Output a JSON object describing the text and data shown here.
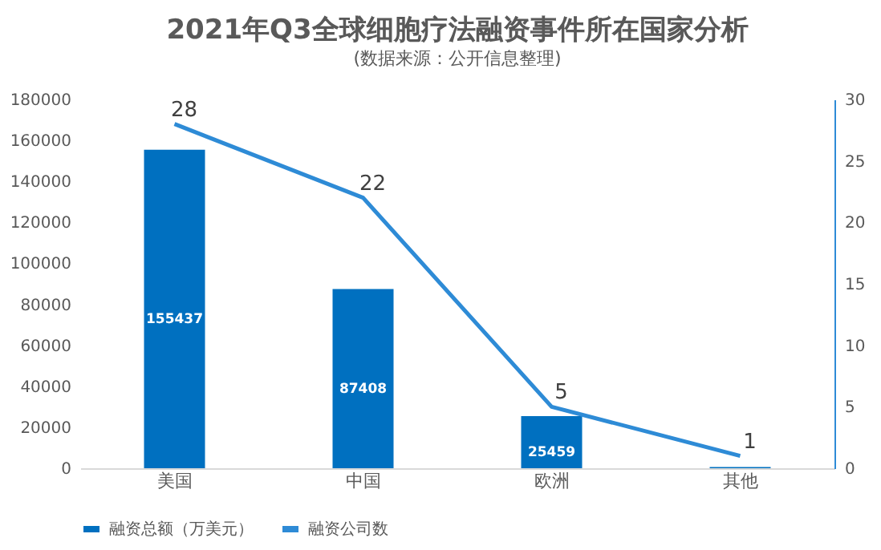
{
  "chart_data": {
    "type": "bar",
    "title": "2021年Q3全球细胞疗法融资事件所在国家分析",
    "subtitle": "(数据来源：公开信息整理)",
    "categories": [
      "美国",
      "中国",
      "欧洲",
      "其他"
    ],
    "series": [
      {
        "name": "融资总额（万美元）",
        "type": "bar",
        "color": "#0070c0",
        "values": [
          155437,
          87408,
          25459,
          600
        ],
        "value_labels": [
          "155437",
          "87408",
          "25459",
          null
        ]
      },
      {
        "name": "融资公司数",
        "type": "line",
        "axis": "y2",
        "color": "#2e8bd6",
        "values": [
          28,
          22,
          5,
          1
        ],
        "value_labels": [
          "28",
          "22",
          "5",
          "1"
        ]
      }
    ],
    "ylim": [
      0,
      180000
    ],
    "yticks": [
      0,
      20000,
      40000,
      60000,
      80000,
      100000,
      120000,
      140000,
      160000,
      180000
    ],
    "y2lim": [
      0,
      30
    ],
    "y2ticks": [
      0,
      5,
      10,
      15,
      20,
      25,
      30
    ],
    "grid": false,
    "legend": "bottom",
    "marker": "none",
    "line_style": "solid"
  }
}
